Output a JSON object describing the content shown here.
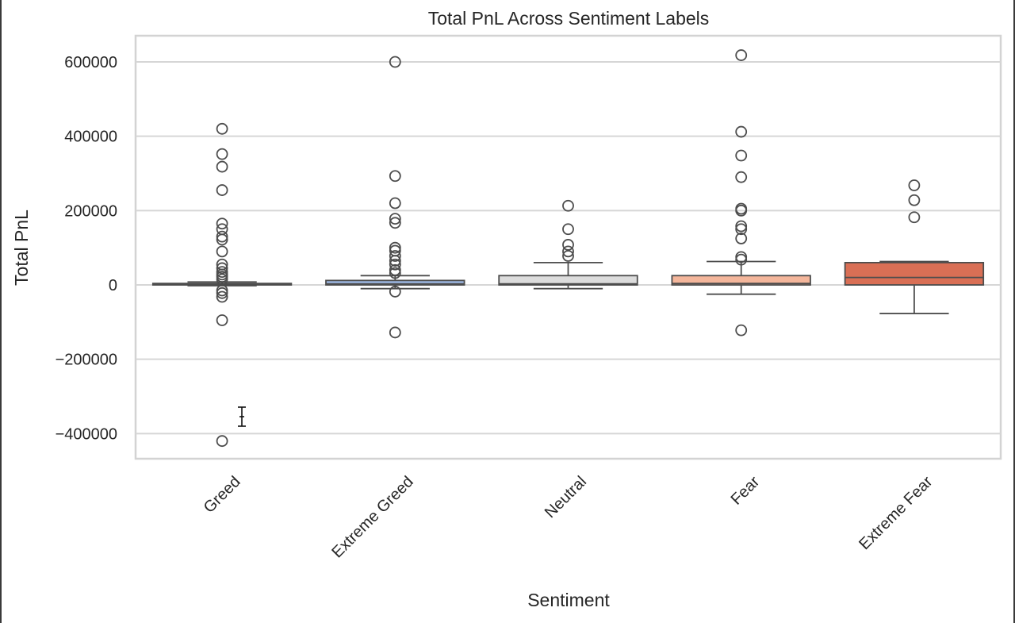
{
  "chart_data": {
    "type": "box",
    "title": "Total PnL Across Sentiment Labels",
    "xlabel": "Sentiment",
    "ylabel": "Total PnL",
    "ylim": [
      -470000,
      670000
    ],
    "yticks": [
      -400000,
      -200000,
      0,
      200000,
      400000,
      600000
    ],
    "ytick_labels": [
      "−400000",
      "−200000",
      "0",
      "200000",
      "400000",
      "600000"
    ],
    "grid": true,
    "categories": [
      "Greed",
      "Extreme Greed",
      "Neutral",
      "Fear",
      "Extreme Fear"
    ],
    "colors": [
      "#4a6fb0",
      "#9db7e2",
      "#dcdcdc",
      "#f4b69b",
      "#d96f55"
    ],
    "boxes": [
      {
        "min": -2000,
        "q1": 0,
        "median": 1000,
        "q3": 4000,
        "max": 8000,
        "outliers": [
          420000,
          352000,
          318000,
          255000,
          165000,
          150000,
          130000,
          122000,
          90000,
          55000,
          45000,
          35000,
          28000,
          22000,
          15000,
          -15000,
          -22000,
          -32000,
          -95000,
          -420000
        ]
      },
      {
        "min": -10000,
        "q1": 0,
        "median": 3000,
        "q3": 12000,
        "max": 25000,
        "outliers": [
          600000,
          293000,
          220000,
          178000,
          167000,
          100000,
          92000,
          78000,
          65000,
          55000,
          40000,
          32000,
          -18000,
          -128000
        ]
      },
      {
        "min": -10000,
        "q1": 0,
        "median": 3000,
        "q3": 25000,
        "max": 60000,
        "outliers": [
          213000,
          150000,
          108000,
          90000,
          78000
        ]
      },
      {
        "min": -25000,
        "q1": 0,
        "median": 4000,
        "q3": 25000,
        "max": 63000,
        "outliers": [
          618000,
          412000,
          348000,
          290000,
          205000,
          200000,
          158000,
          150000,
          125000,
          75000,
          68000,
          -122000
        ]
      },
      {
        "min": -77000,
        "q1": 0,
        "median": 20000,
        "q3": 60000,
        "max": 63000,
        "outliers": [
          268000,
          228000,
          182000
        ]
      }
    ]
  }
}
